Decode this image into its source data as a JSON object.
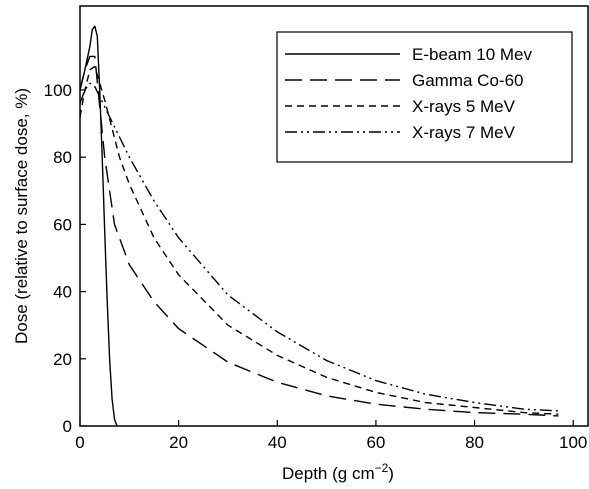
{
  "chart_data": {
    "type": "line",
    "xlabel": "Depth (g cm",
    "xlabel_sup": "−2",
    "xlabel_close": ")",
    "ylabel": "Dose (relative to surface dose, %)",
    "xlim": [
      0,
      103
    ],
    "ylim": [
      0,
      125
    ],
    "xticks": [
      0,
      20,
      40,
      60,
      80,
      100
    ],
    "yticks": [
      0,
      20,
      40,
      60,
      80,
      100
    ],
    "grid": false,
    "legend_position": "top-right",
    "series": [
      {
        "name": "E-beam 10 Mev",
        "dash": "solid",
        "x": [
          0,
          1,
          2,
          2.5,
          3,
          3.5,
          4,
          4.5,
          5,
          5.5,
          6,
          6.5,
          7,
          7.5
        ],
        "y": [
          100,
          106,
          113,
          118,
          119,
          116,
          100,
          80,
          58,
          38,
          20,
          8,
          2,
          0
        ]
      },
      {
        "name": "Gamma Co-60",
        "dash": "long-dash",
        "x": [
          0,
          1,
          2,
          3,
          5,
          7,
          10,
          15,
          20,
          30,
          40,
          50,
          60,
          70,
          80,
          90,
          97
        ],
        "y": [
          100,
          106,
          110,
          110,
          80,
          60,
          48,
          37,
          29,
          19,
          13,
          9,
          6.5,
          5,
          4,
          3.5,
          3
        ]
      },
      {
        "name": "X-rays 5 MeV",
        "dash": "short-dash",
        "x": [
          0,
          1,
          2,
          3,
          5,
          8,
          10,
          15,
          20,
          30,
          40,
          50,
          60,
          70,
          80,
          90,
          97
        ],
        "y": [
          92,
          100,
          106,
          107,
          97,
          80,
          72,
          56,
          45,
          30,
          21,
          14.5,
          10,
          7,
          5.5,
          4,
          3.5
        ]
      },
      {
        "name": "X-rays 7 MeV",
        "dash": "dash-dot-dot",
        "x": [
          0,
          1,
          2,
          3,
          5,
          8,
          10,
          15,
          20,
          30,
          40,
          50,
          60,
          70,
          80,
          90,
          97
        ],
        "y": [
          96,
          100,
          102,
          101,
          95,
          86,
          80,
          67,
          56,
          39,
          28,
          19.5,
          13.5,
          9.5,
          7,
          5,
          4.5
        ]
      }
    ]
  }
}
